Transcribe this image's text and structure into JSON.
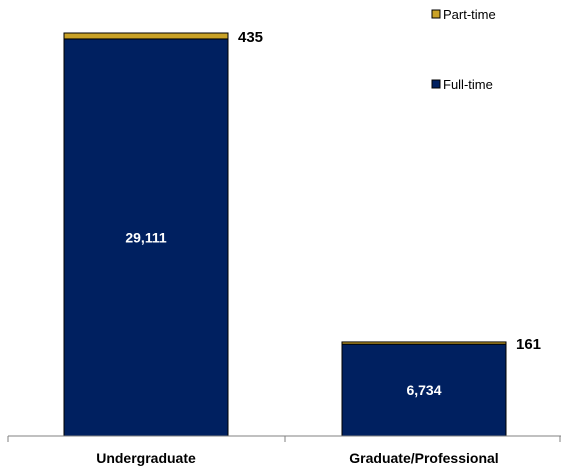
{
  "chart_data": {
    "type": "bar",
    "stacked": true,
    "categories": [
      "Undergraduate",
      "Graduate/Professional"
    ],
    "series": [
      {
        "name": "Full-time",
        "values": [
          29111,
          6734
        ],
        "color": "#002060"
      },
      {
        "name": "Part-time",
        "values": [
          435,
          161
        ],
        "color": "#C9A227"
      }
    ],
    "data_labels": {
      "Full-time": [
        "29,111",
        "6,734"
      ],
      "Part-time": [
        "435",
        "161"
      ]
    },
    "title": "",
    "xlabel": "",
    "ylabel": "",
    "ylim": [
      0,
      30000
    ],
    "grid": false,
    "legend_position": "top-right",
    "legend_order": [
      "Part-time",
      "Full-time"
    ]
  }
}
